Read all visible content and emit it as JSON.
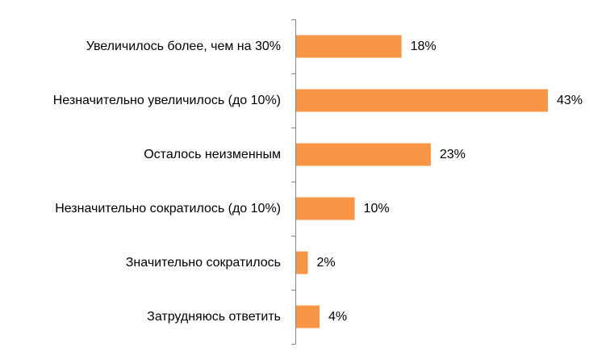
{
  "chart_data": {
    "type": "bar",
    "orientation": "horizontal",
    "categories": [
      "Увеличилось более, чем на 30%",
      "Незначительно увеличилось (до 10%)",
      "Осталось неизменным",
      "Незначительно сократилось (до 10%)",
      "Значительно сократилось",
      "Затрудняюсь ответить"
    ],
    "values": [
      18,
      43,
      23,
      10,
      2,
      4
    ],
    "data_labels": [
      "18%",
      "43%",
      "23%",
      "10%",
      "2%",
      "4%"
    ],
    "title": "",
    "xlabel": "",
    "ylabel": "",
    "xlim": [
      0,
      43
    ],
    "grid": false,
    "legend": "none",
    "bar_color": "#F79646"
  }
}
